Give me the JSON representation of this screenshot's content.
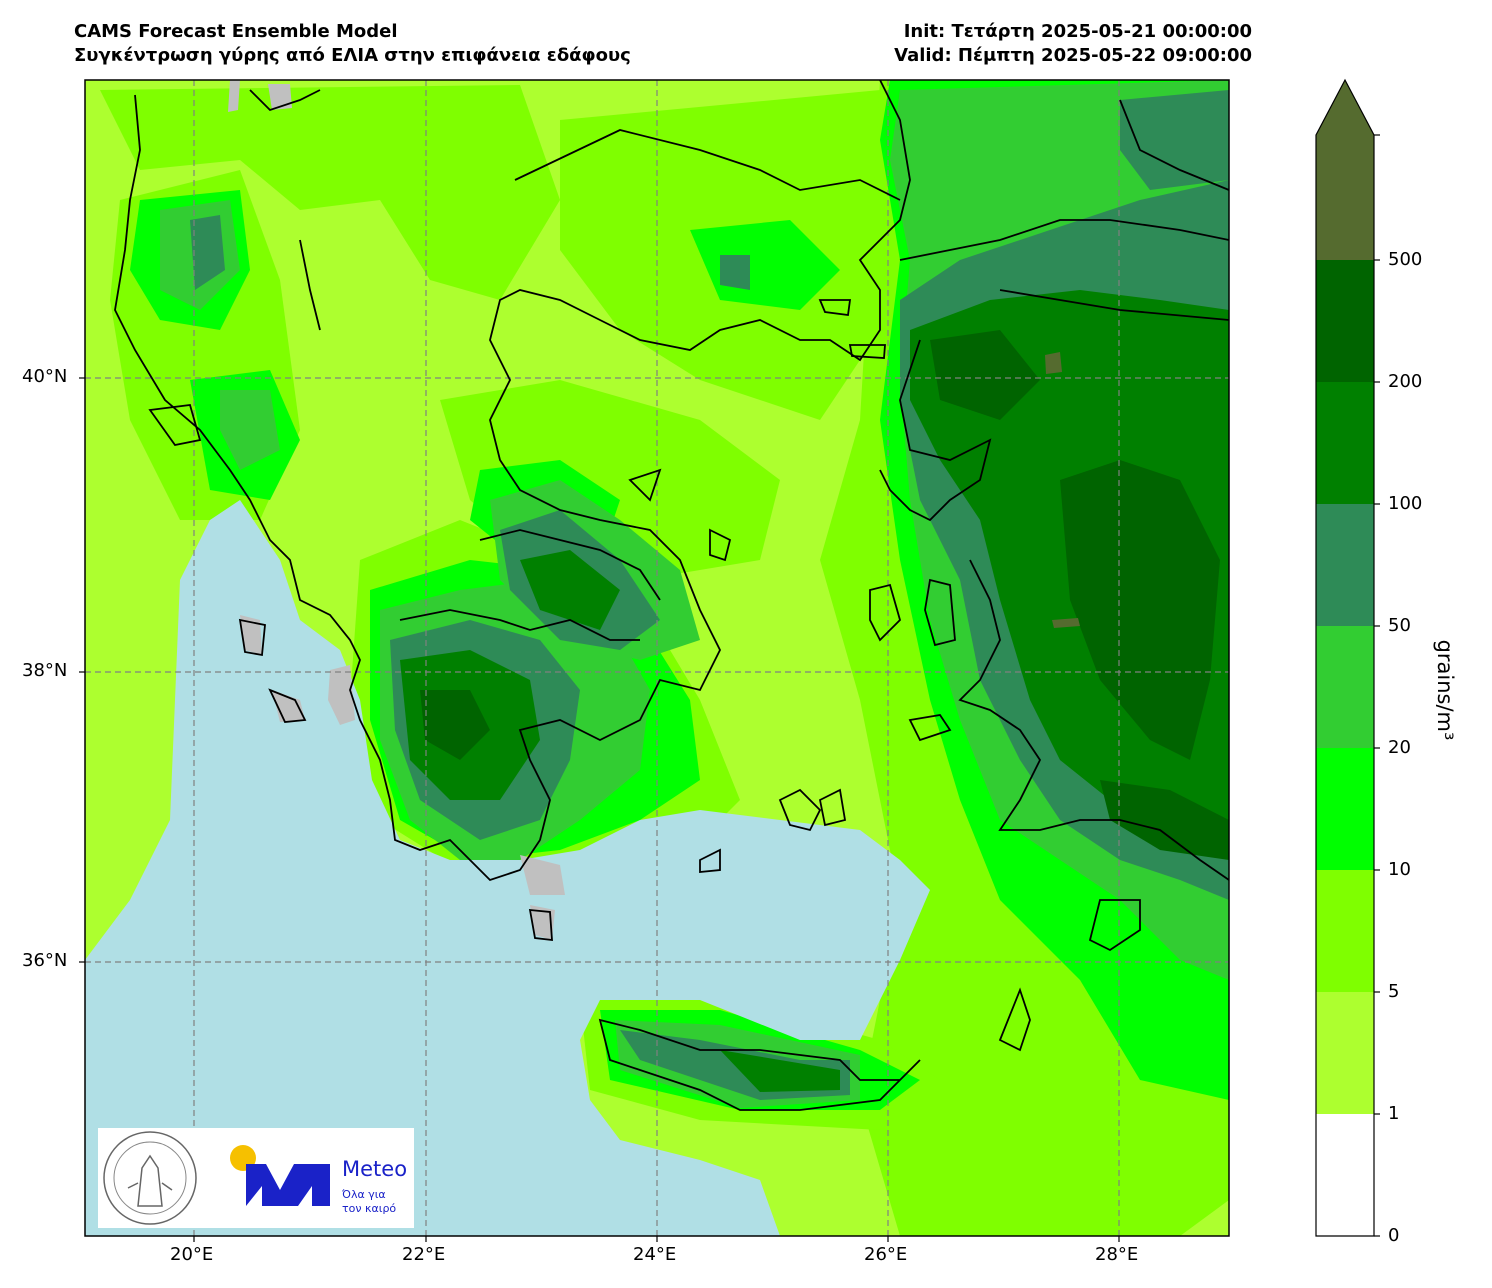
{
  "header": {
    "title_line1": "CAMS Forecast Ensemble Model",
    "title_line2": "Συγκέντρωση γύρης από ΕΛΙΑ στην επιφάνεια εδάφους",
    "init": "Init: Τετάρτη 2025-05-21 00:00:00",
    "valid": "Valid: Πέμπτη 2025-05-22 09:00:00"
  },
  "map": {
    "lon_ticks": [
      "20°E",
      "22°E",
      "24°E",
      "26°E",
      "28°E"
    ],
    "lat_ticks": [
      "40°N",
      "38°N",
      "36°N"
    ],
    "sea_color": "#b0dfe5",
    "land_outside_color": "#c0c0c0"
  },
  "colorbar": {
    "unit": "grains/m³",
    "levels": [
      "0",
      "1",
      "5",
      "10",
      "20",
      "50",
      "100",
      "200",
      "500"
    ],
    "colors": [
      "#ffffff",
      "#adff2f",
      "#7fff00",
      "#00ff00",
      "#32cd32",
      "#2e8b57",
      "#008000",
      "#006400",
      "#556b2f"
    ]
  },
  "logos": {
    "observatory_seal_text": "NATIONAL OBSERVATORY OF ATHENS",
    "brand_name": "Meteo",
    "tagline_line1": "Όλα για",
    "tagline_line2": "τον καιρό",
    "brand_color": "#1a22c8",
    "sun_color": "#f6c000"
  }
}
